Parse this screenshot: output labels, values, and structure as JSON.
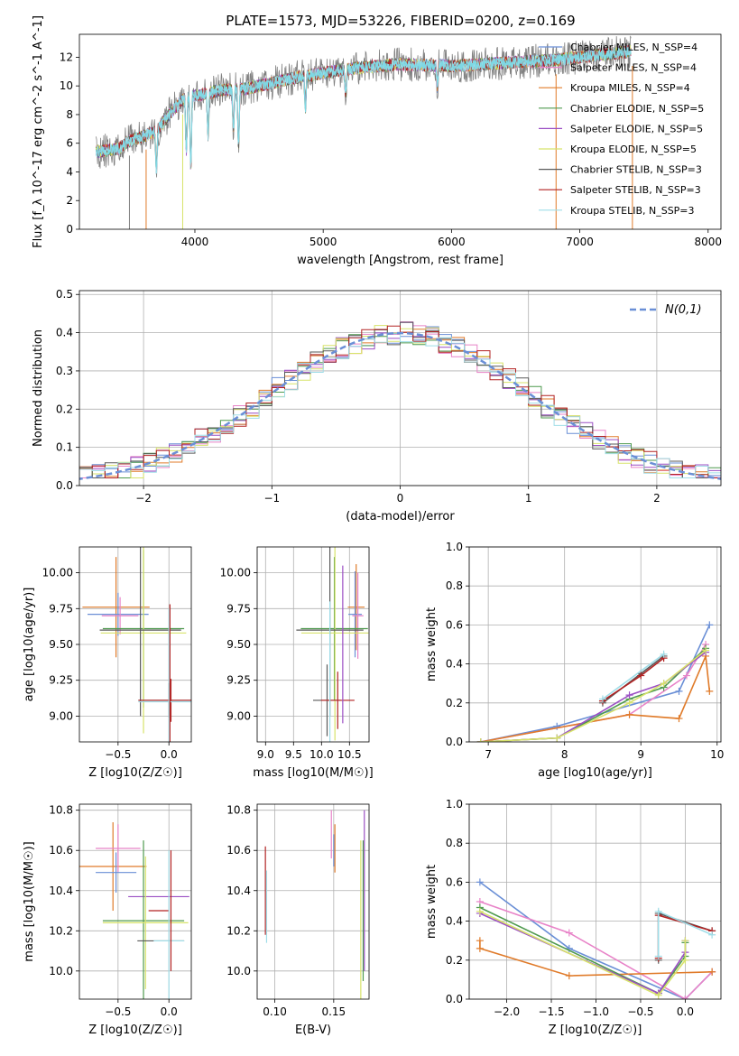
{
  "figure_title": "PLATE=1573, MJD=53226, FIBERID=0200, z=0.169",
  "colors": {
    "grey": "#808080",
    "cyan": "#7ed8e4",
    "blue": "#6a8fd6",
    "orange": "#e07b2a",
    "green": "#4f9a4f",
    "purple": "#9b4fc4",
    "yellow": "#d7e36a",
    "darkgrey": "#5a5a5a",
    "red": "#b22222",
    "pink": "#e883c8",
    "lightcyan": "#9fdde8"
  },
  "chart_data": [
    {
      "id": "spectrum",
      "type": "line",
      "xlabel": "wavelength [Angstrom, rest frame]",
      "ylabel": "Flux [f_λ 10^-17 erg cm^-2 s^-1 A^-1]",
      "xlim": [
        3100,
        8100
      ],
      "ylim": [
        0,
        13.6
      ],
      "xticks": [
        4000,
        5000,
        6000,
        7000,
        8000
      ],
      "yticks": [
        0,
        2,
        4,
        6,
        8,
        10,
        12
      ],
      "grid": false,
      "legend_position": "top-right",
      "legend": [
        {
          "name": "Chabrier MILES, N_SSP=4",
          "color": "blue"
        },
        {
          "name": "Salpeter MILES, N_SSP=4",
          "color": "pink"
        },
        {
          "name": "Kroupa MILES, N_SSP=4",
          "color": "orange"
        },
        {
          "name": "Chabrier ELODIE, N_SSP=5",
          "color": "green"
        },
        {
          "name": "Salpeter ELODIE, N_SSP=5",
          "color": "purple"
        },
        {
          "name": "Kroupa ELODIE, N_SSP=5",
          "color": "yellow"
        },
        {
          "name": "Chabrier STELIB, N_SSP=3",
          "color": "darkgrey"
        },
        {
          "name": "Salpeter STELIB, N_SSP=3",
          "color": "red"
        },
        {
          "name": "Kroupa STELIB, N_SSP=3",
          "color": "lightcyan"
        }
      ],
      "continuum": [
        [
          3230,
          5.4
        ],
        [
          3400,
          5.6
        ],
        [
          3500,
          6.2
        ],
        [
          3700,
          6.8
        ],
        [
          3800,
          8.0
        ],
        [
          3900,
          9.0
        ],
        [
          4000,
          9.3
        ],
        [
          4200,
          9.7
        ],
        [
          4400,
          9.8
        ],
        [
          4600,
          10.2
        ],
        [
          4800,
          10.6
        ],
        [
          5000,
          10.9
        ],
        [
          5300,
          11.3
        ],
        [
          5600,
          11.5
        ],
        [
          6000,
          11.4
        ],
        [
          6400,
          11.6
        ],
        [
          6800,
          11.8
        ],
        [
          7000,
          12.0
        ],
        [
          7200,
          12.2
        ],
        [
          7400,
          12.4
        ]
      ],
      "absorption_features": [
        [
          3700,
          3.0
        ],
        [
          3933,
          4.0
        ],
        [
          3968,
          5.5
        ],
        [
          4102,
          3.0
        ],
        [
          4300,
          3.0
        ],
        [
          4340,
          4.5
        ],
        [
          4861,
          2.5
        ],
        [
          5175,
          2.0
        ],
        [
          5890,
          1.5
        ]
      ],
      "model_drops": [
        {
          "x": 3490,
          "color": "grey"
        },
        {
          "x": 3620,
          "color": "orange"
        },
        {
          "x": 3905,
          "color": "yellow"
        },
        {
          "x": 6815,
          "color": "orange"
        },
        {
          "x": 7410,
          "color": "orange"
        }
      ]
    },
    {
      "id": "residual_hist",
      "type": "line",
      "xlabel": "(data-model)/error",
      "ylabel": "Normed distribution",
      "xlim": [
        -2.5,
        2.5
      ],
      "ylim": [
        0,
        0.51
      ],
      "xticks": [
        -2,
        -1,
        0,
        1,
        2
      ],
      "yticks": [
        0.0,
        0.1,
        0.2,
        0.3,
        0.4,
        0.5
      ],
      "grid": true,
      "legend_position": "top-right",
      "legend_label": "N(0,1)",
      "bin_width": 0.1,
      "series": [
        {
          "color": "blue",
          "seed": 1
        },
        {
          "color": "pink",
          "seed": 2
        },
        {
          "color": "orange",
          "seed": 3
        },
        {
          "color": "green",
          "seed": 4
        },
        {
          "color": "purple",
          "seed": 5
        },
        {
          "color": "yellow",
          "seed": 6
        },
        {
          "color": "darkgrey",
          "seed": 7
        },
        {
          "color": "red",
          "seed": 8
        },
        {
          "color": "lightcyan",
          "seed": 9
        }
      ]
    },
    {
      "id": "age_vs_Z",
      "type": "scatter",
      "xlabel": "Z [log10(Z/Z☉)]",
      "ylabel": "age [log10(age/yr)]",
      "xlim": [
        -0.88,
        0.22
      ],
      "ylim": [
        8.82,
        10.18
      ],
      "xticks": [
        -0.5,
        0.0
      ],
      "yticks": [
        9.0,
        9.25,
        9.5,
        9.75,
        10.0
      ],
      "grid": true,
      "points": [
        {
          "x": -0.52,
          "y": 9.76,
          "xerr": 0.33,
          "yerr": 0.35,
          "color": "orange"
        },
        {
          "x": -0.5,
          "y": 9.71,
          "xerr": 0.3,
          "yerr": 0.15,
          "color": "blue"
        },
        {
          "x": -0.48,
          "y": 9.7,
          "xerr": 0.18,
          "yerr": 0.13,
          "color": "pink"
        },
        {
          "x": -0.25,
          "y": 9.61,
          "xerr": 0.4,
          "yerr": 0.55,
          "color": "green"
        },
        {
          "x": -0.25,
          "y": 9.58,
          "xerr": 0.42,
          "yerr": 0.7,
          "color": "yellow"
        },
        {
          "x": -0.28,
          "y": 9.6,
          "xerr": 0.4,
          "yerr": 0.6,
          "color": "darkgrey"
        },
        {
          "x": 0.0,
          "y": 9.11,
          "xerr": 0.3,
          "yerr": 0.12,
          "color": "darkgrey"
        },
        {
          "x": 0.02,
          "y": 9.11,
          "xerr": 0.32,
          "yerr": 0.15,
          "color": "red"
        },
        {
          "x": 0.0,
          "y": 9.1,
          "xerr": 0.3,
          "yerr": 0.65,
          "color": "lightcyan"
        },
        {
          "x": 0.01,
          "y": 9.1,
          "xerr": 0.0,
          "yerr": 0.68,
          "color": "red"
        }
      ]
    },
    {
      "id": "age_vs_mass",
      "type": "scatter",
      "xlabel": "mass [log10(M/M☉)]",
      "ylabel": "",
      "xlim": [
        8.85,
        10.85
      ],
      "ylim": [
        8.82,
        10.18
      ],
      "xticks": [
        9.0,
        9.5,
        10.0,
        10.5
      ],
      "yticks": [
        9.0,
        9.25,
        9.5,
        9.75,
        10.0
      ],
      "grid": true,
      "points": [
        {
          "x": 10.62,
          "y": 9.76,
          "xerr": 0.15,
          "yerr": 0.3,
          "color": "orange"
        },
        {
          "x": 10.6,
          "y": 9.71,
          "xerr": 0.12,
          "yerr": 0.3,
          "color": "blue"
        },
        {
          "x": 10.65,
          "y": 9.7,
          "xerr": 0.1,
          "yerr": 0.3,
          "color": "pink"
        },
        {
          "x": 10.23,
          "y": 9.61,
          "xerr": 0.6,
          "yerr": 0.5,
          "color": "green"
        },
        {
          "x": 10.24,
          "y": 9.58,
          "xerr": 0.6,
          "yerr": 0.75,
          "color": "yellow"
        },
        {
          "x": 10.15,
          "y": 9.6,
          "xerr": 0.6,
          "yerr": 0.6,
          "color": "darkgrey"
        },
        {
          "x": 10.1,
          "y": 9.11,
          "xerr": 0.25,
          "yerr": 0.25,
          "color": "darkgrey"
        },
        {
          "x": 10.29,
          "y": 9.11,
          "xerr": 0.3,
          "yerr": 0.2,
          "color": "red"
        },
        {
          "x": 10.38,
          "y": 9.5,
          "xerr": 0.0,
          "yerr": 0.55,
          "color": "purple"
        },
        {
          "x": 10.15,
          "y": 9.3,
          "xerr": 0.0,
          "yerr": 0.5,
          "color": "lightcyan"
        }
      ]
    },
    {
      "id": "weight_vs_age",
      "type": "line",
      "xlabel": "age [log10(age/yr)]",
      "ylabel": "mass weight",
      "xlim": [
        6.75,
        10.05
      ],
      "ylim": [
        0,
        1.0
      ],
      "xticks": [
        7,
        8,
        9,
        10
      ],
      "yticks": [
        0.0,
        0.2,
        0.4,
        0.6,
        0.8,
        1.0
      ],
      "grid": true,
      "series": [
        {
          "color": "blue",
          "x": [
            6.9,
            7.9,
            9.5,
            9.9
          ],
          "y": [
            0.0,
            0.08,
            0.26,
            0.6
          ]
        },
        {
          "color": "pink",
          "x": [
            6.9,
            8.85,
            9.6,
            9.85
          ],
          "y": [
            0.0,
            0.14,
            0.34,
            0.5
          ]
        },
        {
          "color": "orange",
          "x": [
            6.9,
            8.85,
            9.5,
            9.85,
            9.9
          ],
          "y": [
            0.0,
            0.14,
            0.12,
            0.44,
            0.26
          ]
        },
        {
          "color": "green",
          "x": [
            6.9,
            7.9,
            8.85,
            9.3,
            9.85
          ],
          "y": [
            0.0,
            0.02,
            0.22,
            0.28,
            0.48
          ]
        },
        {
          "color": "purple",
          "x": [
            6.9,
            7.9,
            8.85,
            9.3,
            9.85
          ],
          "y": [
            0.0,
            0.02,
            0.24,
            0.3,
            0.46
          ]
        },
        {
          "color": "yellow",
          "x": [
            6.9,
            7.9,
            8.85,
            9.3,
            9.85
          ],
          "y": [
            0.0,
            0.02,
            0.2,
            0.3,
            0.47
          ]
        },
        {
          "color": "darkgrey",
          "x": [
            8.5,
            9.0,
            9.3
          ],
          "y": [
            0.2,
            0.35,
            0.44
          ]
        },
        {
          "color": "red",
          "x": [
            8.5,
            9.0,
            9.3
          ],
          "y": [
            0.21,
            0.34,
            0.43
          ]
        },
        {
          "color": "lightcyan",
          "x": [
            8.5,
            9.3
          ],
          "y": [
            0.22,
            0.45
          ]
        }
      ]
    },
    {
      "id": "mass_vs_Z",
      "type": "scatter",
      "xlabel": "Z [log10(Z/Z☉)]",
      "ylabel": "mass [log10(M/M☉)]",
      "xlim": [
        -0.88,
        0.22
      ],
      "ylim": [
        9.86,
        10.83
      ],
      "xticks": [
        -0.5,
        0.0
      ],
      "yticks": [
        10.0,
        10.2,
        10.4,
        10.6,
        10.8
      ],
      "grid": true,
      "points": [
        {
          "x": -0.55,
          "y": 10.52,
          "xerr": 0.33,
          "yerr": 0.22,
          "color": "orange"
        },
        {
          "x": -0.5,
          "y": 10.61,
          "xerr": 0.22,
          "yerr": 0.12,
          "color": "pink"
        },
        {
          "x": -0.52,
          "y": 10.49,
          "xerr": 0.2,
          "yerr": 0.1,
          "color": "blue"
        },
        {
          "x": -0.1,
          "y": 10.37,
          "xerr": 0.3,
          "yerr": 0.0,
          "color": "purple"
        },
        {
          "x": -0.25,
          "y": 10.25,
          "xerr": 0.4,
          "yerr": 0.4,
          "color": "green"
        },
        {
          "x": -0.23,
          "y": 10.24,
          "xerr": 0.42,
          "yerr": 0.33,
          "color": "yellow"
        },
        {
          "x": -0.1,
          "y": 10.3,
          "xerr": 0.1,
          "yerr": 0.0,
          "color": "red"
        },
        {
          "x": -0.08,
          "y": 10.15,
          "xerr": 0.23,
          "yerr": 0.0,
          "color": "darkgrey"
        },
        {
          "x": 0.0,
          "y": 10.15,
          "xerr": 0.15,
          "yerr": 0.45,
          "color": "lightcyan"
        },
        {
          "x": 0.02,
          "y": 10.3,
          "xerr": 0.0,
          "yerr": 0.3,
          "color": "red"
        }
      ]
    },
    {
      "id": "mass_vs_EBV",
      "type": "scatter",
      "xlabel": "E(B-V)",
      "ylabel": "",
      "xlim": [
        0.085,
        0.18
      ],
      "ylim": [
        9.86,
        10.83
      ],
      "xticks": [
        0.1,
        0.15
      ],
      "yticks": [
        10.0,
        10.2,
        10.4,
        10.6,
        10.8
      ],
      "grid": true,
      "points": [
        {
          "x": 0.092,
          "y": 10.4,
          "xerr": 0.0,
          "yerr": 0.22,
          "color": "red"
        },
        {
          "x": 0.093,
          "y": 10.32,
          "xerr": 0.0,
          "yerr": 0.18,
          "color": "lightcyan"
        },
        {
          "x": 0.148,
          "y": 10.68,
          "xerr": 0.0,
          "yerr": 0.12,
          "color": "pink"
        },
        {
          "x": 0.151,
          "y": 10.61,
          "xerr": 0.0,
          "yerr": 0.12,
          "color": "orange"
        },
        {
          "x": 0.15,
          "y": 10.6,
          "xerr": 0.0,
          "yerr": 0.08,
          "color": "blue"
        },
        {
          "x": 0.173,
          "y": 10.25,
          "xerr": 0.0,
          "yerr": 0.4,
          "color": "yellow"
        },
        {
          "x": 0.175,
          "y": 10.3,
          "xerr": 0.0,
          "yerr": 0.35,
          "color": "green"
        },
        {
          "x": 0.176,
          "y": 10.4,
          "xerr": 0.0,
          "yerr": 0.4,
          "color": "purple"
        }
      ]
    },
    {
      "id": "weight_vs_Z",
      "type": "line",
      "xlabel": "Z [log10(Z/Z☉)]",
      "ylabel": "mass weight",
      "xlim": [
        -2.42,
        0.4
      ],
      "ylim": [
        0,
        1.0
      ],
      "xticks": [
        -2.0,
        -1.5,
        -1.0,
        -0.5,
        0.0
      ],
      "yticks": [
        0.0,
        0.2,
        0.4,
        0.6,
        0.8,
        1.0
      ],
      "grid": true,
      "series": [
        {
          "color": "blue",
          "x": [
            -2.3,
            -1.3,
            0.0,
            0.3
          ],
          "y": [
            0.6,
            0.26,
            0.0,
            0.14
          ]
        },
        {
          "color": "pink",
          "x": [
            -2.3,
            -1.3,
            0.0,
            0.3
          ],
          "y": [
            0.5,
            0.34,
            0.0,
            0.14
          ]
        },
        {
          "color": "orange",
          "x": [
            -2.3,
            -2.3,
            -1.3,
            0.3
          ],
          "y": [
            0.3,
            0.26,
            0.12,
            0.14
          ]
        },
        {
          "color": "green",
          "x": [
            -2.3,
            -0.3,
            0.0,
            0.0
          ],
          "y": [
            0.47,
            0.03,
            0.22,
            0.29
          ]
        },
        {
          "color": "purple",
          "x": [
            -2.3,
            -0.3,
            0.0,
            0.0
          ],
          "y": [
            0.44,
            0.03,
            0.24,
            0.3
          ]
        },
        {
          "color": "yellow",
          "x": [
            -2.3,
            -0.3,
            0.0,
            0.0
          ],
          "y": [
            0.45,
            0.02,
            0.2,
            0.3
          ]
        },
        {
          "color": "darkgrey",
          "x": [
            -0.3,
            -0.3,
            0.3
          ],
          "y": [
            0.2,
            0.44,
            0.35
          ]
        },
        {
          "color": "red",
          "x": [
            -0.3,
            -0.3,
            0.3
          ],
          "y": [
            0.21,
            0.43,
            0.35
          ]
        },
        {
          "color": "lightcyan",
          "x": [
            -0.3,
            -0.3,
            0.3
          ],
          "y": [
            0.22,
            0.45,
            0.33
          ]
        }
      ]
    }
  ]
}
